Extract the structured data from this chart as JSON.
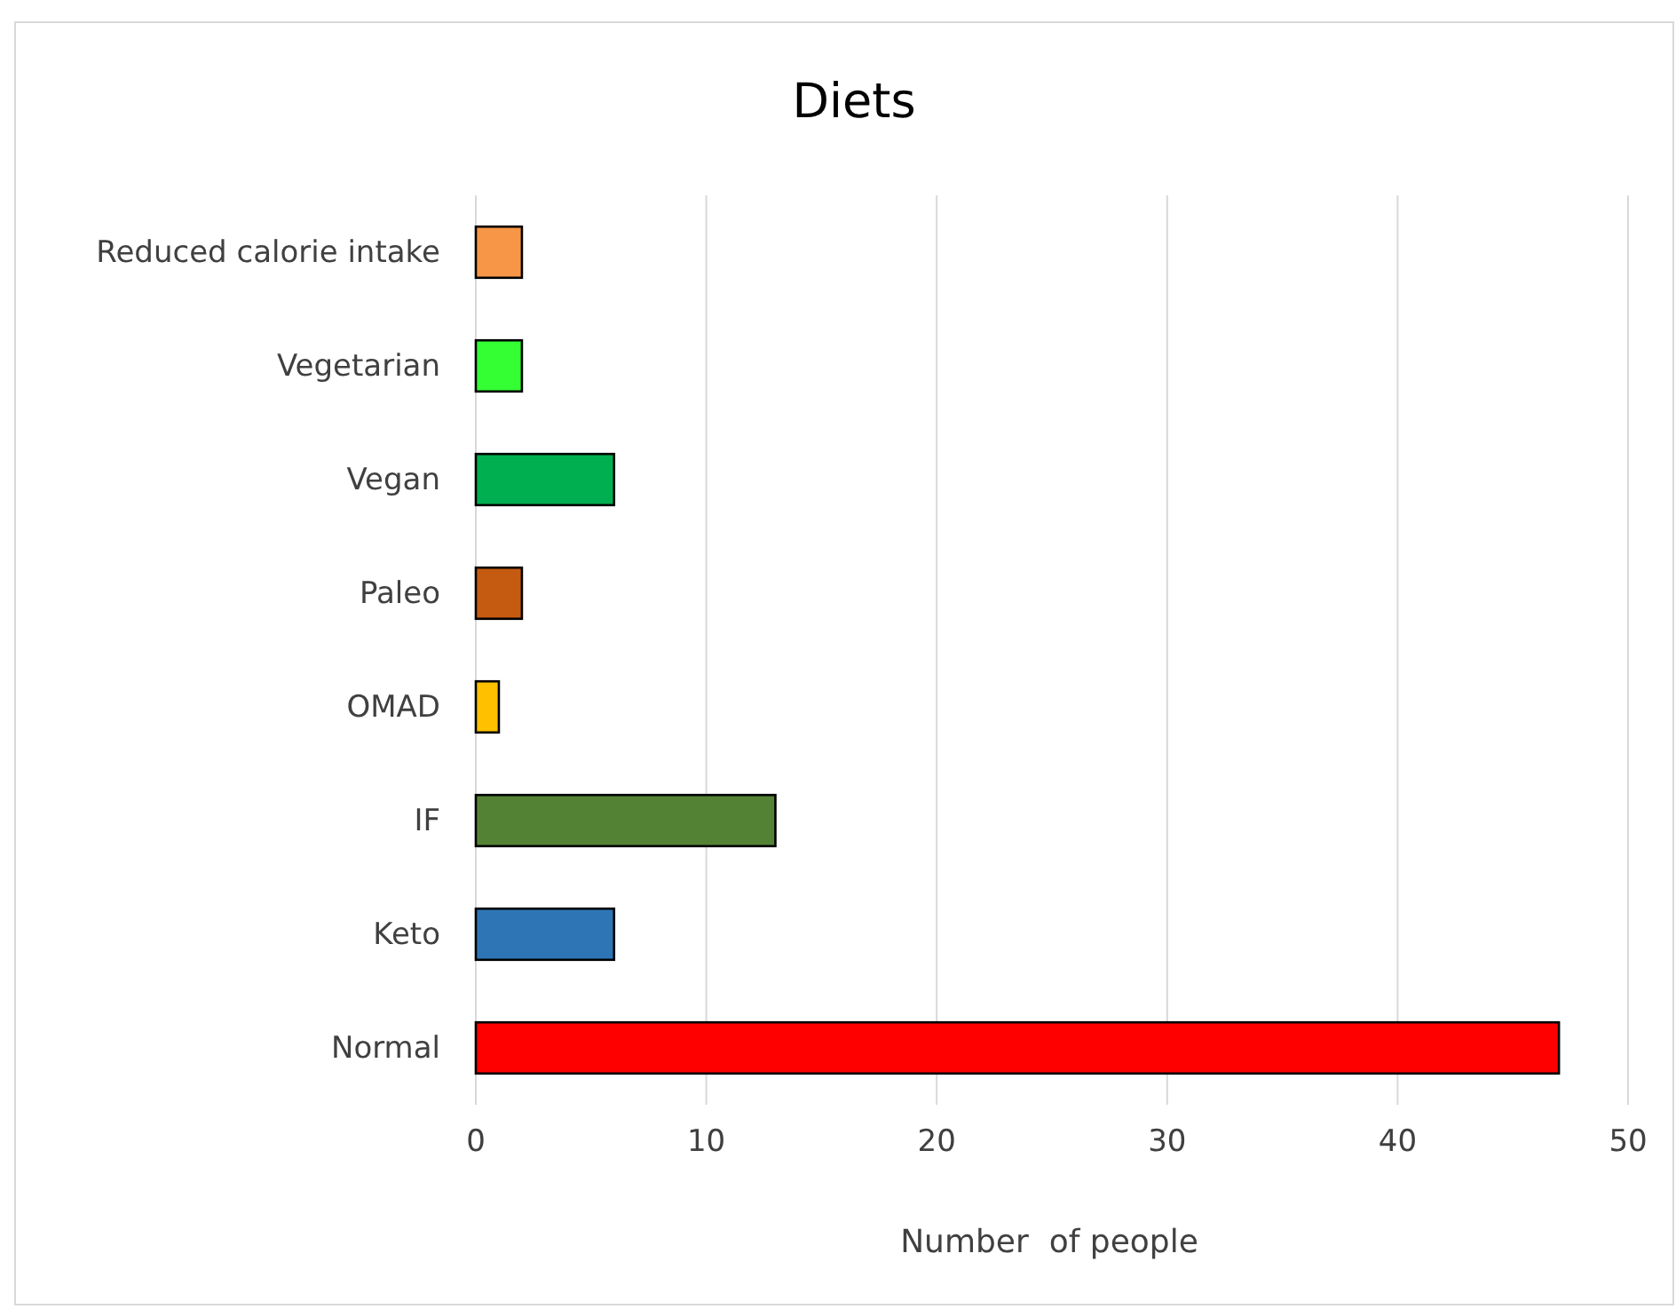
{
  "chart_data": {
    "type": "bar",
    "orientation": "horizontal",
    "title": "Diets",
    "xlabel": "Number  of people",
    "categories": [
      "Reduced calorie intake",
      "Vegetarian",
      "Vegan",
      "Paleo",
      "OMAD",
      "IF",
      "Keto",
      "Normal"
    ],
    "values": [
      2,
      2,
      6,
      2,
      1,
      13,
      6,
      47
    ],
    "colors": [
      "#f79646",
      "#33ff33",
      "#00b050",
      "#c55a11",
      "#ffc000",
      "#548235",
      "#2e75b6",
      "#ff0000"
    ],
    "xlim": [
      0,
      50
    ],
    "xticks": [
      0,
      10,
      20,
      30,
      40,
      50
    ],
    "grid": "x"
  }
}
